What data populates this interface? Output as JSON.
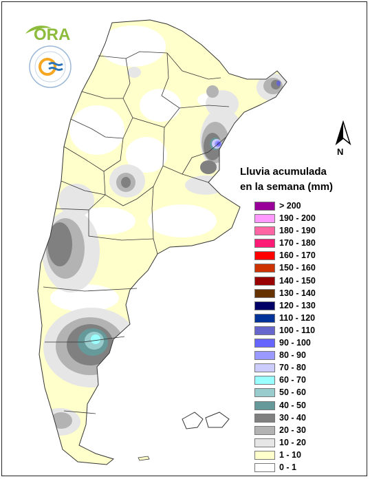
{
  "brand": {
    "logo_text": "ORA",
    "seal_text": "SERVICIO METEOROLÓGICO NACIONAL · ARGENTINA"
  },
  "north_arrow": {
    "label": "N"
  },
  "legend": {
    "title_line1": "Lluvia acumulada",
    "title_line2": "en la semana (mm)",
    "items": [
      {
        "label": "> 200",
        "color": "#990099"
      },
      {
        "label": "190 - 200",
        "color": "#ff99ff"
      },
      {
        "label": "180 - 190",
        "color": "#ff66a3"
      },
      {
        "label": "170 - 180",
        "color": "#ff1a75"
      },
      {
        "label": "160 - 170",
        "color": "#ff0000"
      },
      {
        "label": "150 - 160",
        "color": "#cc3300"
      },
      {
        "label": "140 - 150",
        "color": "#990000"
      },
      {
        "label": "130 - 140",
        "color": "#663300"
      },
      {
        "label": "120 - 130",
        "color": "#000066"
      },
      {
        "label": "110 - 120",
        "color": "#003399"
      },
      {
        "label": "100 - 110",
        "color": "#6666cc"
      },
      {
        "label": "90 - 100",
        "color": "#6666ff"
      },
      {
        "label": "80 - 90",
        "color": "#9999ff"
      },
      {
        "label": "70 - 80",
        "color": "#ccccff"
      },
      {
        "label": "60 - 70",
        "color": "#99ffff"
      },
      {
        "label": "50 - 60",
        "color": "#99cccc"
      },
      {
        "label": "40 - 50",
        "color": "#669999"
      },
      {
        "label": "30 - 40",
        "color": "#808080"
      },
      {
        "label": "20 - 30",
        "color": "#b3b3b3"
      },
      {
        "label": "10 - 20",
        "color": "#e6e6e6"
      },
      {
        "label": "1 - 10",
        "color": "#ffffcc"
      },
      {
        "label": "0 - 1",
        "color": "#ffffff"
      }
    ]
  },
  "colors": {
    "land_base": "#ffffcc",
    "no_rain": "#ffffff",
    "borders": "#333333",
    "ora_green": "#8dbb3c",
    "ora_blue": "#2a73b8"
  }
}
